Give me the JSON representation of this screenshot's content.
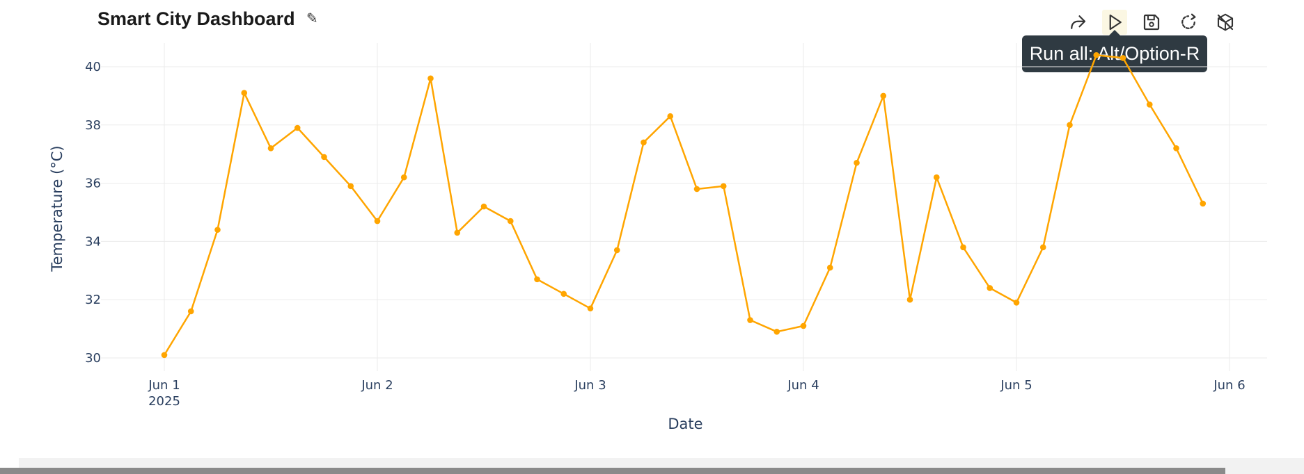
{
  "header": {
    "title": "Smart City Dashboard",
    "edit_icon": "pencil-icon"
  },
  "toolbar": {
    "buttons": [
      {
        "name": "share-icon"
      },
      {
        "name": "run-icon"
      },
      {
        "name": "save-icon"
      },
      {
        "name": "refresh-icon"
      },
      {
        "name": "cube-off-icon"
      }
    ],
    "tooltip": "Run all: Alt/Option-R"
  },
  "colors": {
    "line": "#ffa500",
    "grid": "#ebebeb",
    "tooltip_bg": "#2f3a42"
  },
  "chart_data": {
    "type": "line",
    "xlabel": "Date",
    "ylabel": "Temperature (°C)",
    "ylim": [
      29.6,
      40.8
    ],
    "y_ticks": [
      30,
      32,
      34,
      36,
      38,
      40
    ],
    "x_ticks": [
      {
        "value": 0,
        "label": "Jun 1",
        "sublabel": "2025"
      },
      {
        "value": 24,
        "label": "Jun 2"
      },
      {
        "value": 48,
        "label": "Jun 3"
      },
      {
        "value": 72,
        "label": "Jun 4"
      },
      {
        "value": 96,
        "label": "Jun 5"
      },
      {
        "value": 120,
        "label": "Jun 6"
      }
    ],
    "x_hours": [
      0,
      3,
      6,
      9,
      12,
      15,
      18,
      21,
      24,
      27,
      30,
      33,
      36,
      39,
      42,
      45,
      48,
      51,
      54,
      57,
      60,
      63,
      66,
      69,
      72,
      75,
      78,
      81,
      84,
      87,
      90,
      93,
      96,
      99,
      102,
      105,
      108,
      111,
      114,
      117
    ],
    "series": [
      {
        "values": [
          30.1,
          31.6,
          34.4,
          39.1,
          37.2,
          37.9,
          36.9,
          35.9,
          34.7,
          36.2,
          39.6,
          34.3,
          35.2,
          34.7,
          32.7,
          32.2,
          31.7,
          33.7,
          37.4,
          38.3,
          35.8,
          35.9,
          31.3,
          30.9,
          31.1,
          33.1,
          36.7,
          39.0,
          32.0,
          36.2,
          33.8,
          32.4,
          31.9,
          33.8,
          38.0,
          40.4,
          40.3,
          38.7,
          37.2,
          35.3
        ]
      }
    ],
    "grid": true,
    "legend": "none"
  }
}
